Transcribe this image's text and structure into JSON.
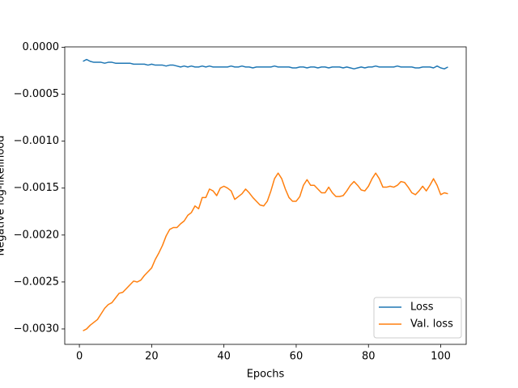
{
  "chart_data": {
    "type": "line",
    "xlabel": "Epochs",
    "ylabel": "Negative log-likelihood",
    "x": [
      1,
      2,
      3,
      4,
      5,
      6,
      7,
      8,
      9,
      10,
      11,
      12,
      13,
      14,
      15,
      16,
      17,
      18,
      19,
      20,
      21,
      22,
      23,
      24,
      25,
      26,
      27,
      28,
      29,
      30,
      31,
      32,
      33,
      34,
      35,
      36,
      37,
      38,
      39,
      40,
      41,
      42,
      43,
      44,
      45,
      46,
      47,
      48,
      49,
      50,
      51,
      52,
      53,
      54,
      55,
      56,
      57,
      58,
      59,
      60,
      61,
      62,
      63,
      64,
      65,
      66,
      67,
      68,
      69,
      70,
      71,
      72,
      73,
      74,
      75,
      76,
      77,
      78,
      79,
      80,
      81,
      82,
      83,
      84,
      85,
      86,
      87,
      88,
      89,
      90,
      91,
      92,
      93,
      94,
      95,
      96,
      97,
      98,
      99,
      100,
      101,
      102
    ],
    "series": [
      {
        "name": "Loss",
        "color": "#1f77b4",
        "values": [
          -0.00015,
          -0.00013,
          -0.00015,
          -0.00016,
          -0.00016,
          -0.00016,
          -0.00017,
          -0.00016,
          -0.00016,
          -0.00017,
          -0.00017,
          -0.00017,
          -0.00017,
          -0.00017,
          -0.00018,
          -0.00018,
          -0.00018,
          -0.00018,
          -0.00019,
          -0.00018,
          -0.00019,
          -0.00019,
          -0.00019,
          -0.0002,
          -0.00019,
          -0.00019,
          -0.0002,
          -0.00021,
          -0.0002,
          -0.00021,
          -0.0002,
          -0.00021,
          -0.00021,
          -0.0002,
          -0.00021,
          -0.0002,
          -0.00021,
          -0.00021,
          -0.00021,
          -0.00021,
          -0.00021,
          -0.0002,
          -0.00021,
          -0.00021,
          -0.0002,
          -0.00021,
          -0.00021,
          -0.00022,
          -0.00021,
          -0.00021,
          -0.00021,
          -0.00021,
          -0.00021,
          -0.0002,
          -0.00021,
          -0.00021,
          -0.00021,
          -0.00021,
          -0.00022,
          -0.00022,
          -0.00021,
          -0.00021,
          -0.00022,
          -0.00021,
          -0.00021,
          -0.00022,
          -0.00021,
          -0.00021,
          -0.00022,
          -0.00021,
          -0.00021,
          -0.00021,
          -0.00022,
          -0.00021,
          -0.00022,
          -0.00023,
          -0.00022,
          -0.00021,
          -0.00022,
          -0.00021,
          -0.00021,
          -0.0002,
          -0.00021,
          -0.00021,
          -0.00021,
          -0.00021,
          -0.00021,
          -0.0002,
          -0.00021,
          -0.00021,
          -0.00021,
          -0.00021,
          -0.00022,
          -0.00022,
          -0.00021,
          -0.00021,
          -0.00021,
          -0.00022,
          -0.0002,
          -0.00022,
          -0.00023,
          -0.00021
        ]
      },
      {
        "name": "Val. loss",
        "color": "#ff7f0e",
        "values": [
          -0.00302,
          -0.003,
          -0.00296,
          -0.00293,
          -0.0029,
          -0.00284,
          -0.00278,
          -0.00274,
          -0.00272,
          -0.00267,
          -0.00262,
          -0.00261,
          -0.00257,
          -0.00253,
          -0.00249,
          -0.0025,
          -0.00248,
          -0.00243,
          -0.00239,
          -0.00235,
          -0.00226,
          -0.00219,
          -0.00211,
          -0.00201,
          -0.00194,
          -0.00192,
          -0.00192,
          -0.00188,
          -0.00185,
          -0.00179,
          -0.00176,
          -0.00169,
          -0.00172,
          -0.0016,
          -0.0016,
          -0.00151,
          -0.00153,
          -0.00158,
          -0.0015,
          -0.00148,
          -0.0015,
          -0.00153,
          -0.00162,
          -0.00159,
          -0.00156,
          -0.00151,
          -0.00155,
          -0.0016,
          -0.00164,
          -0.00168,
          -0.00169,
          -0.00164,
          -0.00153,
          -0.0014,
          -0.00134,
          -0.0014,
          -0.00151,
          -0.0016,
          -0.00164,
          -0.00164,
          -0.00159,
          -0.00147,
          -0.00141,
          -0.00147,
          -0.00147,
          -0.00151,
          -0.00155,
          -0.00155,
          -0.00149,
          -0.00155,
          -0.00159,
          -0.00159,
          -0.00158,
          -0.00153,
          -0.00147,
          -0.00143,
          -0.00147,
          -0.00152,
          -0.00153,
          -0.00148,
          -0.0014,
          -0.00134,
          -0.0014,
          -0.00149,
          -0.00149,
          -0.00148,
          -0.00149,
          -0.00147,
          -0.00143,
          -0.00144,
          -0.00149,
          -0.00155,
          -0.00157,
          -0.00153,
          -0.00148,
          -0.00153,
          -0.00147,
          -0.0014,
          -0.00147,
          -0.00157,
          -0.00155,
          -0.00156
        ]
      }
    ],
    "xlim": [
      -4.05,
      107.05
    ],
    "xticks": [
      0,
      20,
      40,
      60,
      80,
      100
    ],
    "ylim": [
      -0.003164,
      4e-06
    ],
    "yticks": [
      {
        "value": 0,
        "label": "0.0000"
      },
      {
        "value": -0.0005,
        "label": "−0.0005"
      },
      {
        "value": -0.001,
        "label": "−0.0010"
      },
      {
        "value": -0.0015,
        "label": "−0.0015"
      },
      {
        "value": -0.002,
        "label": "−0.0020"
      },
      {
        "value": -0.0025,
        "label": "−0.0025"
      },
      {
        "value": -0.003,
        "label": "−0.0030"
      }
    ],
    "legend": "lower right",
    "grid": false
  }
}
